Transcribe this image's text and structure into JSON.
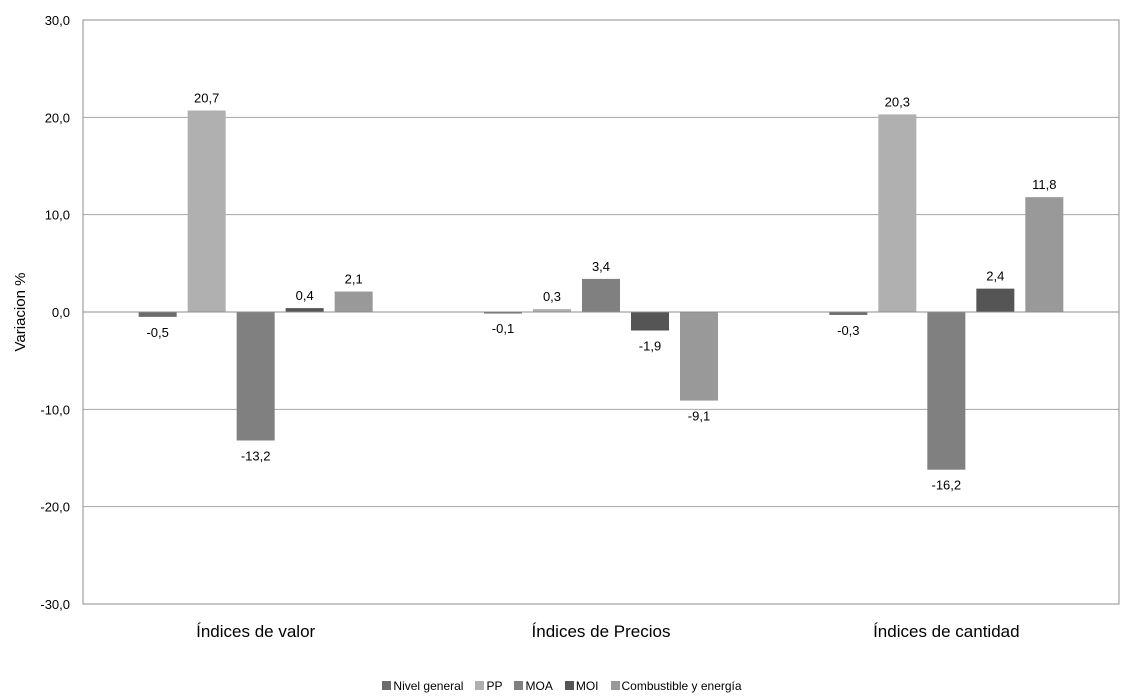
{
  "chart_data": {
    "type": "bar",
    "title": "",
    "xlabel": "",
    "ylabel": "Variacion %",
    "ylim": [
      -30,
      30
    ],
    "yticks": [
      -30,
      -20,
      -10,
      0,
      10,
      20,
      30
    ],
    "ytick_labels": [
      "-30,0",
      "-20,0",
      "-10,0",
      "0,0",
      "10,0",
      "20,0",
      "30,0"
    ],
    "grid": "horizontal",
    "legend_position": "bottom",
    "categories": [
      "Índices de valor",
      "Índices de Precios",
      "Índices de cantidad"
    ],
    "series": [
      {
        "name": "Nivel general",
        "color": "#6b6b6b",
        "values": [
          -0.5,
          -0.1,
          -0.3
        ],
        "labels": [
          "-0,5",
          "-0,1",
          "-0,3"
        ]
      },
      {
        "name": "PP",
        "color": "#b0b0b0",
        "values": [
          20.7,
          0.3,
          20.3
        ],
        "labels": [
          "20,7",
          "0,3",
          "20,3"
        ]
      },
      {
        "name": "MOA",
        "color": "#808080",
        "values": [
          -13.2,
          3.4,
          -16.2
        ],
        "labels": [
          "-13,2",
          "3,4",
          "-16,2"
        ]
      },
      {
        "name": "MOI",
        "color": "#555555",
        "values": [
          0.4,
          -1.9,
          2.4
        ],
        "labels": [
          "0,4",
          "-1,9",
          "2,4"
        ]
      },
      {
        "name": "Combustible y energía",
        "color": "#999999",
        "values": [
          2.1,
          -9.1,
          11.8
        ],
        "labels": [
          "2,1",
          "-9,1",
          "11,8"
        ]
      }
    ]
  }
}
